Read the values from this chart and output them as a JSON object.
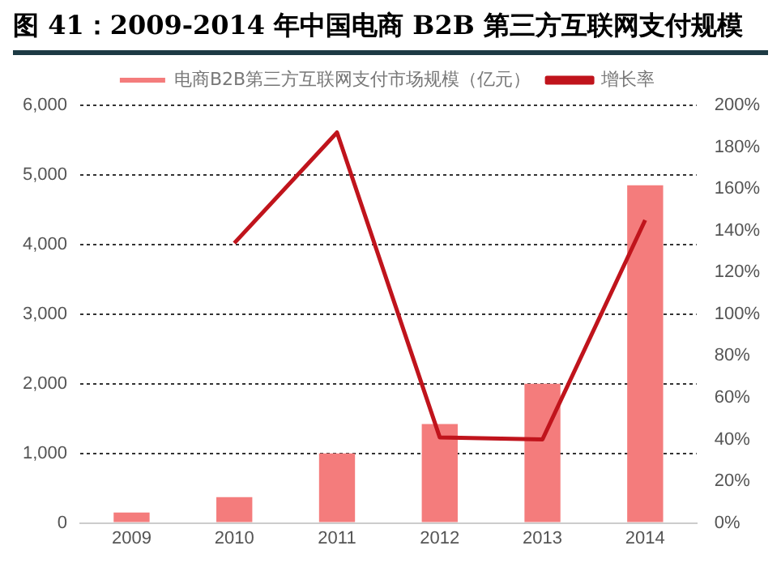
{
  "chart_data": {
    "type": "bar",
    "title": "图 41：2009-2014 年中国电商 B2B 第三方互联网支付规模",
    "categories": [
      "2009",
      "2010",
      "2011",
      "2012",
      "2013",
      "2014"
    ],
    "series": [
      {
        "name": "电商B2B第三方互联网支付市场规模（亿元）",
        "color": "#f47c7c",
        "values": [
          150,
          370,
          1000,
          1420,
          2000,
          4850
        ]
      },
      {
        "name": "增长率",
        "type": "line",
        "axis": "y2",
        "color": "#c0141c",
        "marker": "none",
        "values": [
          null,
          134,
          187,
          41,
          40,
          145
        ]
      }
    ],
    "ylim": [
      0,
      6000
    ],
    "yticks": [
      {
        "value": 0,
        "label": "0"
      },
      {
        "value": 1000,
        "label": "1,000"
      },
      {
        "value": 2000,
        "label": "2,000"
      },
      {
        "value": 3000,
        "label": "3,000"
      },
      {
        "value": 4000,
        "label": "4,000"
      },
      {
        "value": 5000,
        "label": "5,000"
      },
      {
        "value": 6000,
        "label": "6,000"
      }
    ],
    "y2lim": [
      0,
      200
    ],
    "y2ticks": [
      {
        "value": 0,
        "label": "0%"
      },
      {
        "value": 20,
        "label": "20%"
      },
      {
        "value": 40,
        "label": "40%"
      },
      {
        "value": 60,
        "label": "60%"
      },
      {
        "value": 80,
        "label": "80%"
      },
      {
        "value": 100,
        "label": "100%"
      },
      {
        "value": 120,
        "label": "120%"
      },
      {
        "value": 140,
        "label": "140%"
      },
      {
        "value": 160,
        "label": "160%"
      },
      {
        "value": 180,
        "label": "180%"
      },
      {
        "value": 200,
        "label": "200%"
      }
    ],
    "grid": "y",
    "legend": "top"
  }
}
